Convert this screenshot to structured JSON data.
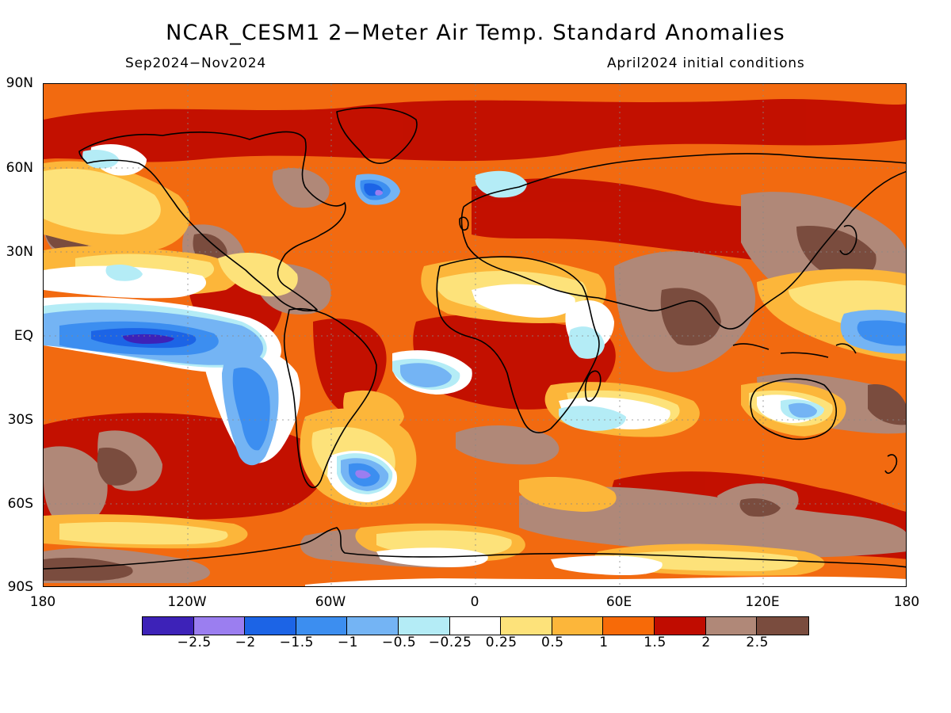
{
  "title": "NCAR_CESM1 2−Meter Air Temp. Standard Anomalies",
  "subtitle_left": "Sep2024−Nov2024",
  "subtitle_right": "April2024 initial conditions",
  "lat_axis": [
    "90N",
    "60N",
    "30N",
    "EQ",
    "30S",
    "60S",
    "90S"
  ],
  "lon_axis": [
    "180",
    "120W",
    "60W",
    "0",
    "60E",
    "120E",
    "180"
  ],
  "colorbar": {
    "colors": [
      "#3d22b8",
      "#9b7ef0",
      "#1c64e6",
      "#3c8ef0",
      "#74b4f4",
      "#b4ecf6",
      "#ffffff",
      "#fde27a",
      "#fcb63a",
      "#f76a08",
      "#c00c00",
      "#b08878",
      "#7a4c3e"
    ],
    "labels": [
      "−2.5",
      "−2",
      "−1.5",
      "−1",
      "−0.5",
      "−0.25",
      "0.25",
      "0.5",
      "1",
      "1.5",
      "2",
      "2.5"
    ]
  },
  "colors": {
    "background_anomaly": "#f26a10",
    "coastline": "#000000"
  }
}
